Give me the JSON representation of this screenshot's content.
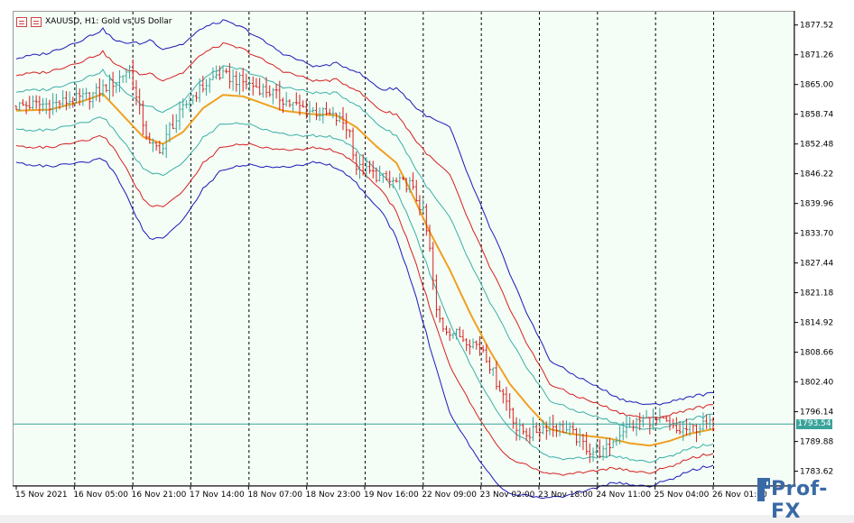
{
  "window": {
    "header": "XAUUSD, H1:  Gold vs US Dollar",
    "current_price": "1793.54"
  },
  "logo": {
    "text": "Prof-FX"
  },
  "colors": {
    "background": "#f4fdf6",
    "bull": "#3aa39a",
    "bear": "#d62020",
    "ma_orange": "#f0a020",
    "band_inner": "#3ab0a8",
    "band_mid": "#d62020",
    "band_outer": "#1a1ab8",
    "current_line": "#3aa39a"
  },
  "chart_data": {
    "type": "candlestick",
    "symbol": "XAUUSD",
    "timeframe": "H1",
    "ylim": [
      1780.5,
      1880.5
    ],
    "y_ticks": [
      1877.52,
      1871.26,
      1865.0,
      1858.74,
      1852.48,
      1846.22,
      1839.96,
      1833.7,
      1827.44,
      1821.18,
      1814.92,
      1808.66,
      1802.4,
      1796.14,
      1789.88,
      1783.62
    ],
    "x_tick_labels": [
      "15 Nov 2021",
      "16 Nov 05:00",
      "16 Nov 21:00",
      "17 Nov 14:00",
      "18 Nov 07:00",
      "18 Nov 23:00",
      "19 Nov 16:00",
      "22 Nov 09:00",
      "23 Nov 02:00",
      "23 Nov 18:00",
      "24 Nov 11:00",
      "25 Nov 04:00",
      "26 Nov 01:00"
    ],
    "current_price": 1793.54,
    "price_path": [
      [
        0,
        1860.5
      ],
      [
        12,
        1861.0
      ],
      [
        22,
        1862.5
      ],
      [
        30,
        1865.8
      ],
      [
        34,
        1868.5
      ],
      [
        36,
        1862.0
      ],
      [
        40,
        1852.0
      ],
      [
        44,
        1851.5
      ],
      [
        46,
        1856.0
      ],
      [
        48,
        1857.5
      ],
      [
        52,
        1862.0
      ],
      [
        56,
        1864.5
      ],
      [
        60,
        1867.0
      ],
      [
        64,
        1866.5
      ],
      [
        70,
        1865.0
      ],
      [
        76,
        1863.5
      ],
      [
        82,
        1861.0
      ],
      [
        88,
        1859.5
      ],
      [
        94,
        1858.5
      ],
      [
        98,
        1857.0
      ],
      [
        100,
        1855.0
      ],
      [
        102,
        1847.5
      ],
      [
        106,
        1846.5
      ],
      [
        112,
        1844.5
      ],
      [
        118,
        1844.0
      ],
      [
        120,
        1841.0
      ],
      [
        122,
        1838.0
      ],
      [
        124,
        1830.0
      ],
      [
        126,
        1817.0
      ],
      [
        128,
        1814.0
      ],
      [
        132,
        1812.5
      ],
      [
        136,
        1811.0
      ],
      [
        140,
        1809.5
      ],
      [
        144,
        1802.5
      ],
      [
        148,
        1797.0
      ],
      [
        150,
        1792.5
      ],
      [
        154,
        1791.5
      ],
      [
        160,
        1793.5
      ],
      [
        166,
        1792.0
      ],
      [
        172,
        1788.0
      ],
      [
        176,
        1787.5
      ],
      [
        178,
        1789.0
      ],
      [
        182,
        1792.5
      ],
      [
        188,
        1794.5
      ],
      [
        194,
        1794.0
      ],
      [
        198,
        1792.0
      ],
      [
        202,
        1792.5
      ],
      [
        206,
        1793.2
      ],
      [
        209,
        1793.5
      ]
    ],
    "ma_path": [
      [
        0,
        1859.5
      ],
      [
        10,
        1859.7
      ],
      [
        20,
        1861.5
      ],
      [
        26,
        1863.0
      ],
      [
        32,
        1858.5
      ],
      [
        38,
        1854.0
      ],
      [
        44,
        1852.5
      ],
      [
        50,
        1855.0
      ],
      [
        56,
        1860.0
      ],
      [
        62,
        1862.8
      ],
      [
        68,
        1862.5
      ],
      [
        74,
        1861.0
      ],
      [
        80,
        1859.5
      ],
      [
        88,
        1858.8
      ],
      [
        96,
        1858.5
      ],
      [
        102,
        1856.0
      ],
      [
        108,
        1852.0
      ],
      [
        114,
        1848.5
      ],
      [
        118,
        1843.0
      ],
      [
        124,
        1834.0
      ],
      [
        130,
        1826.0
      ],
      [
        136,
        1817.0
      ],
      [
        142,
        1809.0
      ],
      [
        148,
        1802.0
      ],
      [
        154,
        1797.0
      ],
      [
        160,
        1792.5
      ],
      [
        166,
        1791.5
      ],
      [
        172,
        1791.0
      ],
      [
        178,
        1790.5
      ],
      [
        184,
        1789.5
      ],
      [
        190,
        1789.0
      ],
      [
        196,
        1790.0
      ],
      [
        202,
        1791.5
      ],
      [
        209,
        1792.5
      ]
    ],
    "ma_inner_width": [
      [
        0,
        4.0
      ],
      [
        30,
        5.0
      ],
      [
        40,
        7.0
      ],
      [
        60,
        6.0
      ],
      [
        90,
        4.5
      ],
      [
        110,
        5.0
      ],
      [
        120,
        7.0
      ],
      [
        130,
        11.0
      ],
      [
        145,
        10.0
      ],
      [
        160,
        6.0
      ],
      [
        180,
        3.5
      ],
      [
        209,
        3.0
      ]
    ],
    "ma_mid_width": [
      [
        0,
        7.5
      ],
      [
        30,
        9.0
      ],
      [
        40,
        14.0
      ],
      [
        60,
        11.0
      ],
      [
        90,
        7.0
      ],
      [
        110,
        8.5
      ],
      [
        120,
        13.0
      ],
      [
        130,
        20.0
      ],
      [
        145,
        17.0
      ],
      [
        160,
        9.5
      ],
      [
        180,
        6.0
      ],
      [
        209,
        5.0
      ]
    ],
    "ma_outer_width": [
      [
        0,
        11.0
      ],
      [
        30,
        14.0
      ],
      [
        40,
        21.0
      ],
      [
        60,
        16.0
      ],
      [
        90,
        10.0
      ],
      [
        110,
        13.0
      ],
      [
        120,
        20.0
      ],
      [
        130,
        30.0
      ],
      [
        145,
        25.0
      ],
      [
        160,
        14.5
      ],
      [
        180,
        9.0
      ],
      [
        209,
        7.5
      ]
    ],
    "total_bars": 210
  }
}
